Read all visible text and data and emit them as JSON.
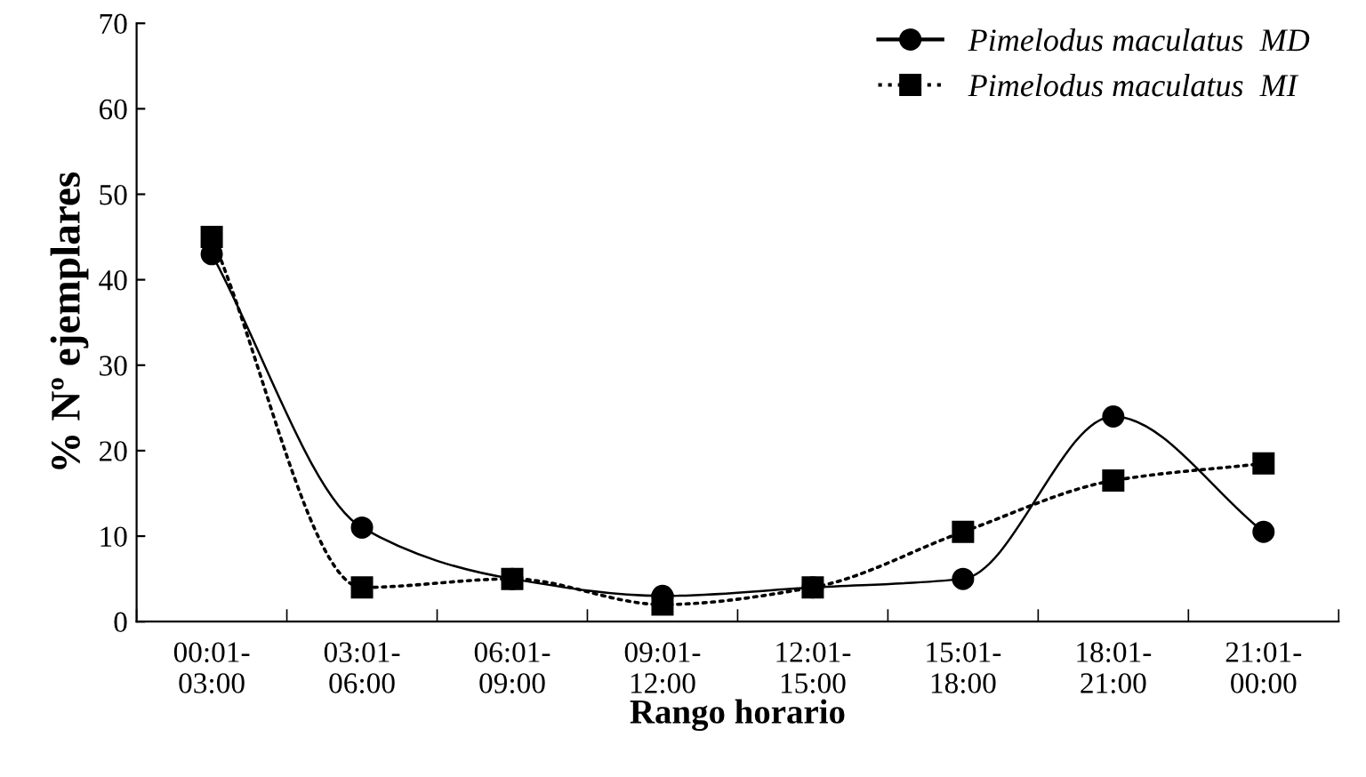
{
  "chart_data": {
    "type": "line",
    "xlabel": "Rango horario",
    "ylabel": "% Nº ejemplares",
    "categories": [
      "00:01-\n03:00",
      "03:01-\n06:00",
      "06:01-\n09:00",
      "09:01-\n12:00",
      "12:01-\n15:00",
      "15:01-\n18:00",
      "18:01-\n21:00",
      "21:01-\n00:00"
    ],
    "series": [
      {
        "name": "Pimelodus maculatus  MD",
        "color": "#000000",
        "marker": "circle",
        "line_style": "solid",
        "values": [
          43,
          11,
          5,
          3,
          4,
          5,
          24,
          10.5
        ]
      },
      {
        "name": "Pimelodus maculatus  MI",
        "color": "#000000",
        "marker": "square",
        "line_style": "dotted",
        "values": [
          45,
          4,
          5,
          2,
          4,
          10.5,
          16.5,
          18.5
        ]
      }
    ],
    "ylim": [
      0,
      70
    ],
    "yticks": [
      0,
      10,
      20,
      30,
      40,
      50,
      60,
      70
    ],
    "grid": false,
    "legend": "top right"
  }
}
